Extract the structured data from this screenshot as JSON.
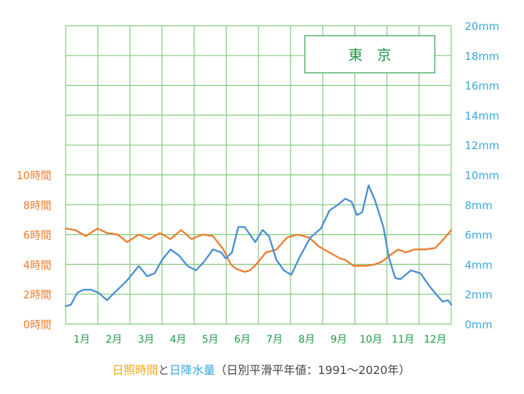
{
  "chart_data": {
    "type": "line",
    "title": "東　京",
    "caption": {
      "part1": "日照時間",
      "part2": "と",
      "part3": "日降水量",
      "part4": "（日別平滑平年値：1991〜2020年）"
    },
    "categories": [
      "1月",
      "2月",
      "3月",
      "4月",
      "5月",
      "6月",
      "7月",
      "8月",
      "9月",
      "10月",
      "11月",
      "12月"
    ],
    "y_left": {
      "unit": "時間",
      "range": [
        0,
        20
      ],
      "ticks": [
        "0時間",
        "2時間",
        "4時間",
        "6時間",
        "8時間",
        "10時間"
      ]
    },
    "y_right": {
      "unit": "mm",
      "range": [
        0,
        20
      ],
      "ticks": [
        "0mm",
        "2mm",
        "4mm",
        "6mm",
        "8mm",
        "10mm",
        "12mm",
        "14mm",
        "16mm",
        "18mm",
        "20mm"
      ]
    },
    "grid": true,
    "series": [
      {
        "name": "日照時間",
        "color": "#ed7d31",
        "x": [
          1,
          10,
          20,
          31,
          40,
          50,
          59,
          70,
          80,
          90,
          100,
          110,
          120,
          130,
          140,
          150,
          157,
          162,
          170,
          175,
          181,
          190,
          200,
          210,
          220,
          231,
          240,
          250,
          260,
          265,
          273,
          285,
          293,
          300,
          307,
          315,
          322,
          330,
          340,
          350,
          358,
          365
        ],
        "values": [
          6.4,
          6.3,
          5.9,
          6.4,
          6.1,
          6.0,
          5.5,
          6.0,
          5.7,
          6.1,
          5.7,
          6.3,
          5.7,
          6.0,
          5.9,
          5.0,
          4.0,
          3.7,
          3.5,
          3.6,
          4.0,
          4.8,
          5.0,
          5.8,
          6.0,
          5.8,
          5.2,
          4.8,
          4.4,
          4.3,
          3.9,
          3.9,
          4.0,
          4.2,
          4.6,
          5.0,
          4.8,
          5.0,
          5.0,
          5.1,
          5.7,
          6.3
        ]
      },
      {
        "name": "日降水量",
        "color": "#4a8fd4",
        "x": [
          1,
          6,
          12,
          18,
          25,
          32,
          40,
          47,
          53,
          60,
          70,
          78,
          85,
          92,
          100,
          108,
          116,
          124,
          132,
          140,
          148,
          152,
          158,
          164,
          170,
          175,
          180,
          187,
          193,
          200,
          207,
          214,
          222,
          232,
          242,
          250,
          258,
          265,
          271,
          276,
          281,
          287,
          293,
          297,
          301,
          306,
          312,
          317,
          322,
          327,
          336,
          345,
          352,
          357,
          362,
          365
        ],
        "values": [
          1.2,
          1.3,
          2.1,
          2.3,
          2.3,
          2.1,
          1.6,
          2.1,
          2.5,
          3.0,
          3.9,
          3.2,
          3.4,
          4.3,
          5.0,
          4.6,
          3.9,
          3.6,
          4.2,
          5.0,
          4.8,
          4.4,
          4.8,
          6.5,
          6.5,
          6.0,
          5.5,
          6.3,
          5.9,
          4.3,
          3.6,
          3.3,
          4.5,
          5.8,
          6.4,
          7.6,
          8.0,
          8.4,
          8.2,
          7.3,
          7.5,
          9.3,
          8.3,
          7.4,
          6.5,
          4.5,
          3.1,
          3.0,
          3.3,
          3.6,
          3.4,
          2.5,
          1.9,
          1.5,
          1.6,
          1.3
        ]
      }
    ]
  }
}
